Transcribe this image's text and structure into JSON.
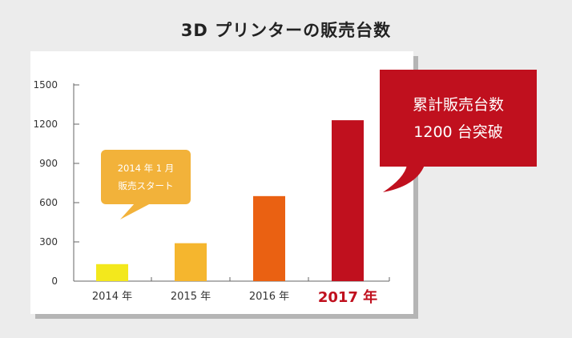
{
  "header": {
    "title": "3D プリンターの販売台数"
  },
  "chart_data": {
    "type": "bar",
    "categories": [
      "2014 年",
      "2015 年",
      "2016 年",
      "2017 年"
    ],
    "values": [
      130,
      290,
      650,
      1230
    ],
    "ylim": [
      0,
      1500
    ],
    "yticks": [
      "0",
      "300",
      "600",
      "900",
      "1200",
      "1500"
    ],
    "ytick_values": [
      0,
      300,
      600,
      900,
      1200,
      1500
    ],
    "bar_colors": [
      "#f3e81c",
      "#f5b62e",
      "#ea6112",
      "#c0101e"
    ],
    "highlight_category": "2017 年",
    "highlight_color": "#c0101e",
    "grid": false
  },
  "annotations": {
    "small": {
      "line1": "2014 年 1 月",
      "line2": "販売スタート",
      "color": "#f2b23a"
    },
    "big": {
      "line1": "累計販売台数",
      "line2": "1200 台突破",
      "color": "#c0101e"
    }
  }
}
